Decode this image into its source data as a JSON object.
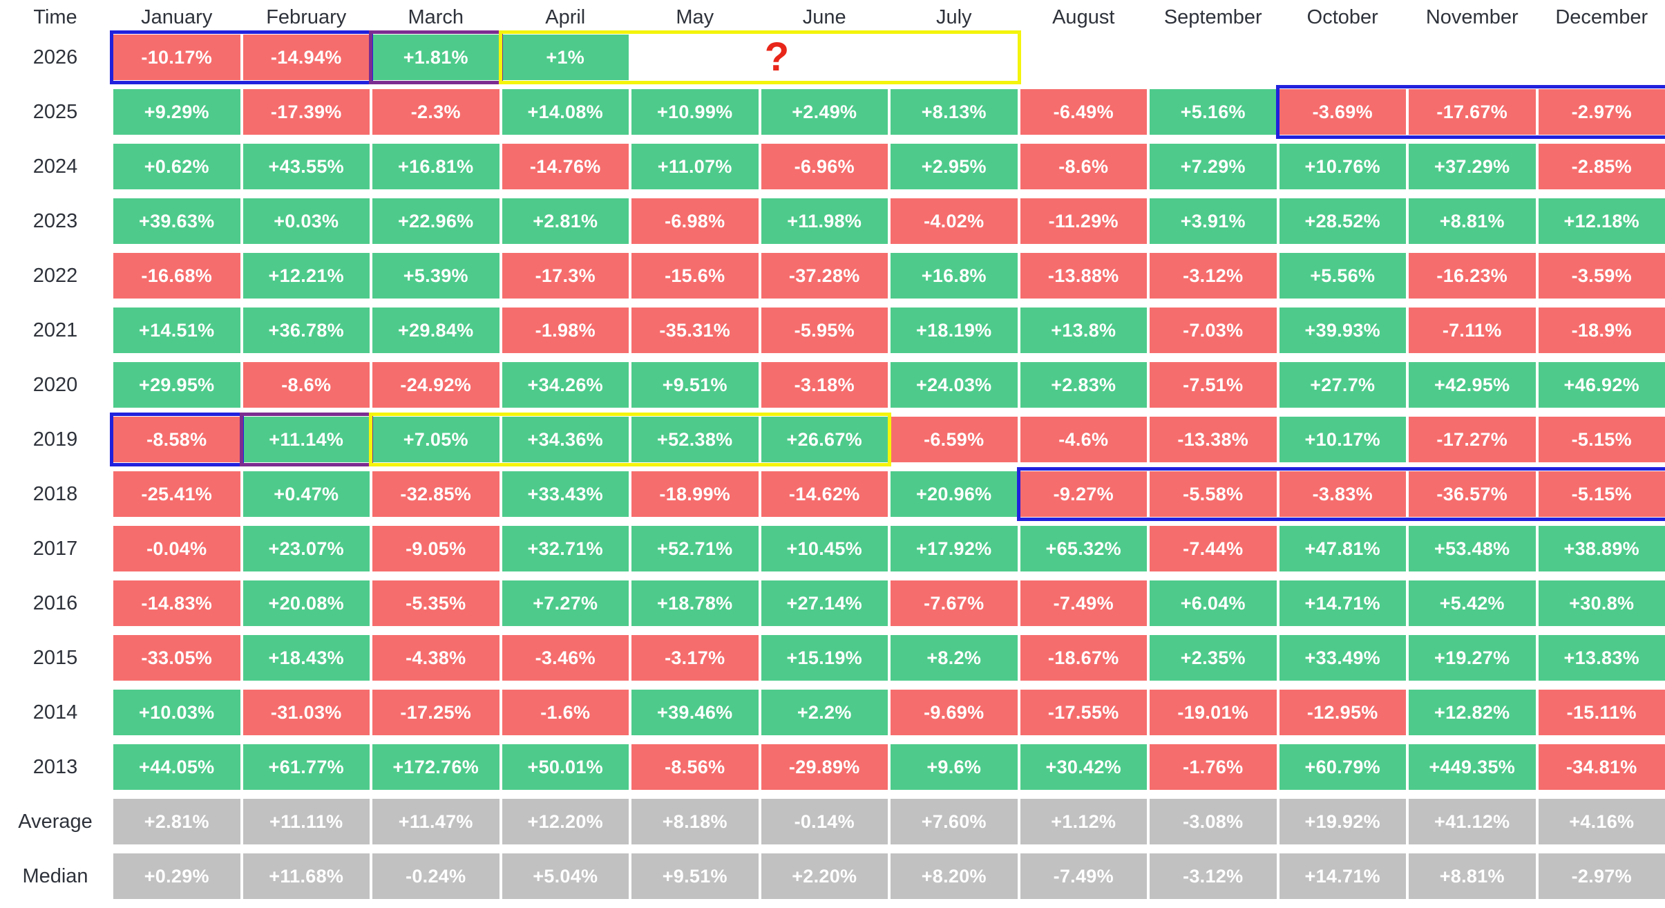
{
  "chart_data": {
    "type": "heatmap",
    "corner_label": "Time",
    "columns": [
      "January",
      "February",
      "March",
      "April",
      "May",
      "June",
      "July",
      "August",
      "September",
      "October",
      "November",
      "December"
    ],
    "rows": [
      {
        "label": "2026",
        "summary": false,
        "values": [
          "-10.17%",
          "-14.94%",
          "+1.81%",
          "+1%",
          "",
          "",
          "",
          "",
          "",
          "",
          "",
          ""
        ]
      },
      {
        "label": "2025",
        "summary": false,
        "values": [
          "+9.29%",
          "-17.39%",
          "-2.3%",
          "+14.08%",
          "+10.99%",
          "+2.49%",
          "+8.13%",
          "-6.49%",
          "+5.16%",
          "-3.69%",
          "-17.67%",
          "-2.97%"
        ]
      },
      {
        "label": "2024",
        "summary": false,
        "values": [
          "+0.62%",
          "+43.55%",
          "+16.81%",
          "-14.76%",
          "+11.07%",
          "-6.96%",
          "+2.95%",
          "-8.6%",
          "+7.29%",
          "+10.76%",
          "+37.29%",
          "-2.85%"
        ]
      },
      {
        "label": "2023",
        "summary": false,
        "values": [
          "+39.63%",
          "+0.03%",
          "+22.96%",
          "+2.81%",
          "-6.98%",
          "+11.98%",
          "-4.02%",
          "-11.29%",
          "+3.91%",
          "+28.52%",
          "+8.81%",
          "+12.18%"
        ]
      },
      {
        "label": "2022",
        "summary": false,
        "values": [
          "-16.68%",
          "+12.21%",
          "+5.39%",
          "-17.3%",
          "-15.6%",
          "-37.28%",
          "+16.8%",
          "-13.88%",
          "-3.12%",
          "+5.56%",
          "-16.23%",
          "-3.59%"
        ]
      },
      {
        "label": "2021",
        "summary": false,
        "values": [
          "+14.51%",
          "+36.78%",
          "+29.84%",
          "-1.98%",
          "-35.31%",
          "-5.95%",
          "+18.19%",
          "+13.8%",
          "-7.03%",
          "+39.93%",
          "-7.11%",
          "-18.9%"
        ]
      },
      {
        "label": "2020",
        "summary": false,
        "values": [
          "+29.95%",
          "-8.6%",
          "-24.92%",
          "+34.26%",
          "+9.51%",
          "-3.18%",
          "+24.03%",
          "+2.83%",
          "-7.51%",
          "+27.7%",
          "+42.95%",
          "+46.92%"
        ]
      },
      {
        "label": "2019",
        "summary": false,
        "values": [
          "-8.58%",
          "+11.14%",
          "+7.05%",
          "+34.36%",
          "+52.38%",
          "+26.67%",
          "-6.59%",
          "-4.6%",
          "-13.38%",
          "+10.17%",
          "-17.27%",
          "-5.15%"
        ]
      },
      {
        "label": "2018",
        "summary": false,
        "values": [
          "-25.41%",
          "+0.47%",
          "-32.85%",
          "+33.43%",
          "-18.99%",
          "-14.62%",
          "+20.96%",
          "-9.27%",
          "-5.58%",
          "-3.83%",
          "-36.57%",
          "-5.15%"
        ]
      },
      {
        "label": "2017",
        "summary": false,
        "values": [
          "-0.04%",
          "+23.07%",
          "-9.05%",
          "+32.71%",
          "+52.71%",
          "+10.45%",
          "+17.92%",
          "+65.32%",
          "-7.44%",
          "+47.81%",
          "+53.48%",
          "+38.89%"
        ]
      },
      {
        "label": "2016",
        "summary": false,
        "values": [
          "-14.83%",
          "+20.08%",
          "-5.35%",
          "+7.27%",
          "+18.78%",
          "+27.14%",
          "-7.67%",
          "-7.49%",
          "+6.04%",
          "+14.71%",
          "+5.42%",
          "+30.8%"
        ]
      },
      {
        "label": "2015",
        "summary": false,
        "values": [
          "-33.05%",
          "+18.43%",
          "-4.38%",
          "-3.46%",
          "-3.17%",
          "+15.19%",
          "+8.2%",
          "-18.67%",
          "+2.35%",
          "+33.49%",
          "+19.27%",
          "+13.83%"
        ]
      },
      {
        "label": "2014",
        "summary": false,
        "values": [
          "+10.03%",
          "-31.03%",
          "-17.25%",
          "-1.6%",
          "+39.46%",
          "+2.2%",
          "-9.69%",
          "-17.55%",
          "-19.01%",
          "-12.95%",
          "+12.82%",
          "-15.11%"
        ]
      },
      {
        "label": "2013",
        "summary": false,
        "values": [
          "+44.05%",
          "+61.77%",
          "+172.76%",
          "+50.01%",
          "-8.56%",
          "-29.89%",
          "+9.6%",
          "+30.42%",
          "-1.76%",
          "+60.79%",
          "+449.35%",
          "-34.81%"
        ]
      },
      {
        "label": "Average",
        "summary": true,
        "values": [
          "+2.81%",
          "+11.11%",
          "+11.47%",
          "+12.20%",
          "+8.18%",
          "-0.14%",
          "+7.60%",
          "+1.12%",
          "-3.08%",
          "+19.92%",
          "+41.12%",
          "+4.16%"
        ]
      },
      {
        "label": "Median",
        "summary": true,
        "values": [
          "+0.29%",
          "+11.68%",
          "-0.24%",
          "+5.04%",
          "+9.51%",
          "+2.20%",
          "+8.20%",
          "-7.49%",
          "-3.12%",
          "+14.71%",
          "+8.81%",
          "-2.97%"
        ]
      }
    ],
    "colors": {
      "positive": "#4ecb8b",
      "negative": "#f66d6d",
      "summary": "#c1c1c1",
      "value_text": "#ffffff",
      "label_text": "#2e323a"
    },
    "highlight_colors": {
      "blue": "#2121dd",
      "purple": "#7c2d90",
      "yellow": "#f4f40c"
    },
    "highlights": [
      {
        "row": "2026",
        "from": "January",
        "to": "February",
        "color": "blue"
      },
      {
        "row": "2026",
        "from": "March",
        "to": "March",
        "color": "purple"
      },
      {
        "row": "2026",
        "from": "April",
        "to": "July",
        "color": "yellow"
      },
      {
        "row": "2025",
        "from": "October",
        "to": "December",
        "color": "blue"
      },
      {
        "row": "2019",
        "from": "January",
        "to": "January",
        "color": "blue"
      },
      {
        "row": "2019",
        "from": "February",
        "to": "February",
        "color": "purple"
      },
      {
        "row": "2019",
        "from": "March",
        "to": "June",
        "color": "yellow"
      },
      {
        "row": "2018",
        "from": "August",
        "to": "December",
        "color": "blue"
      }
    ],
    "question_mark": {
      "text": "?",
      "row": "2026",
      "over_from": "May",
      "over_to": "June",
      "color": "#e8261a"
    }
  }
}
